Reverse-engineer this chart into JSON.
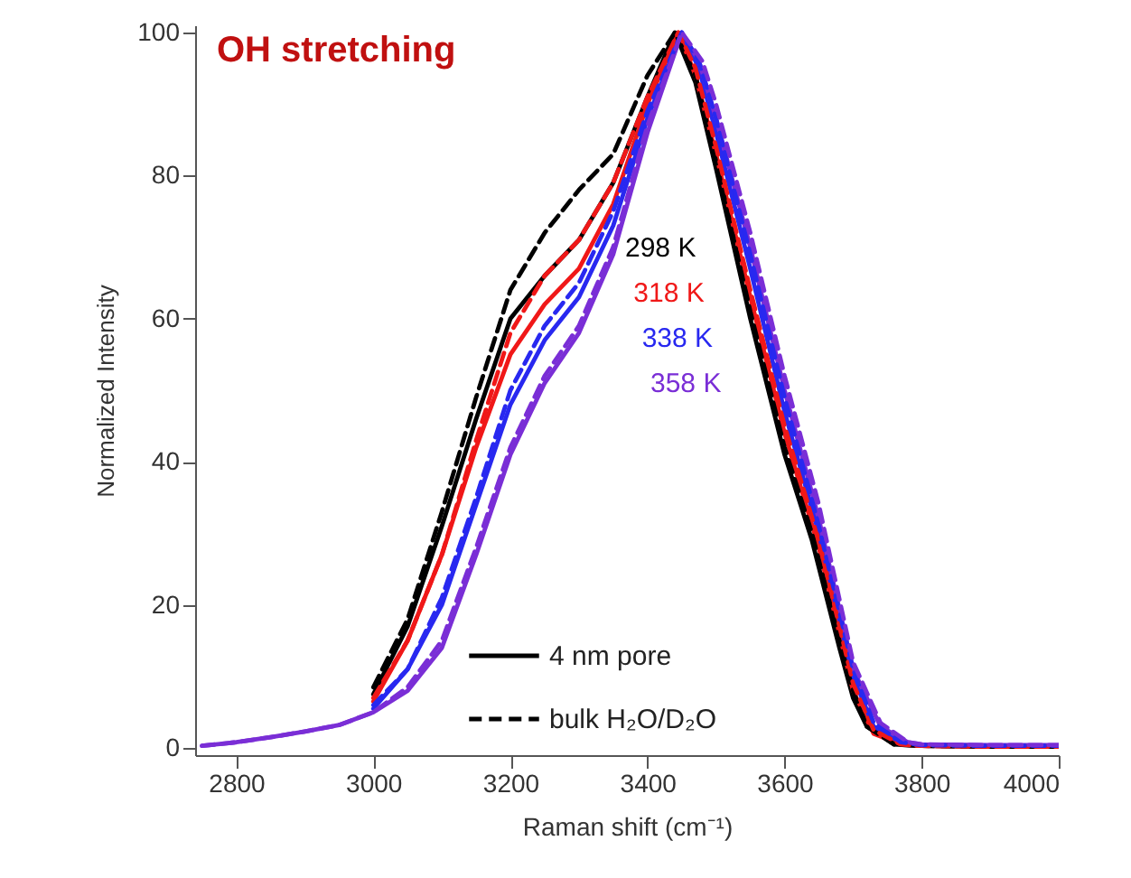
{
  "chart_data": {
    "type": "line",
    "title": "OH stretching",
    "xlabel": "Raman shift (cm⁻¹)",
    "ylabel": "Normalized Intensity",
    "annotations": [
      "4 nm pore",
      "bulk H₂O/D₂O"
    ],
    "xlim": [
      2740,
      4000
    ],
    "xticks": [
      2800,
      3000,
      3200,
      3400,
      3600,
      3800,
      4000
    ],
    "ylim": [
      -1,
      101
    ],
    "yticks": [
      0,
      20,
      40,
      60,
      80,
      100
    ],
    "legend": "right",
    "series": [
      {
        "name": "298 K",
        "color": "#000000",
        "line_style": "solid",
        "x": [
          3000,
          3050,
          3100,
          3150,
          3200,
          3250,
          3300,
          3350,
          3400,
          3440,
          3470,
          3500,
          3550,
          3600,
          3640,
          3680,
          3700,
          3720,
          3760,
          3800,
          3900,
          4000
        ],
        "values": [
          7.5,
          17,
          31,
          46,
          60,
          66,
          71,
          79,
          91,
          100,
          93,
          81,
          60,
          41,
          29,
          14,
          7,
          3,
          0.5,
          0.3,
          0.2,
          0.2
        ]
      },
      {
        "name": "318 K",
        "color": "#f01818",
        "line_style": "solid",
        "x": [
          3000,
          3050,
          3100,
          3150,
          3200,
          3250,
          3300,
          3350,
          3400,
          3445,
          3470,
          3500,
          3550,
          3600,
          3650,
          3680,
          3700,
          3730,
          3770,
          3800,
          3900,
          4000
        ],
        "values": [
          6.5,
          15,
          27,
          42,
          55,
          62,
          67,
          76,
          90,
          100,
          94,
          83,
          63,
          44,
          28,
          16,
          8,
          2,
          0.5,
          0.3,
          0.2,
          0.2
        ]
      },
      {
        "name": "338 K",
        "color": "#2828f0",
        "line_style": "solid",
        "x": [
          3000,
          3050,
          3100,
          3150,
          3200,
          3250,
          3300,
          3350,
          3400,
          3450,
          3475,
          3500,
          3550,
          3600,
          3650,
          3700,
          3730,
          3770,
          3800,
          3900,
          4000
        ],
        "values": [
          5.5,
          11,
          20,
          34,
          48,
          57,
          63,
          73,
          88,
          100,
          95,
          86,
          67,
          47,
          30,
          10,
          3,
          0.8,
          0.4,
          0.3,
          0.3
        ]
      },
      {
        "name": "358 K",
        "color": "#7a2ed6",
        "line_style": "solid",
        "x": [
          2750,
          2800,
          2850,
          2900,
          2950,
          3000,
          3050,
          3100,
          3150,
          3200,
          3250,
          3300,
          3350,
          3400,
          3450,
          3475,
          3500,
          3550,
          3600,
          3650,
          3700,
          3740,
          3780,
          3800,
          3900,
          4000
        ],
        "values": [
          0.3,
          0.8,
          1.5,
          2.3,
          3.2,
          5,
          8,
          14,
          27,
          41,
          51,
          58,
          69,
          86,
          100,
          96,
          88,
          70,
          50,
          32,
          11,
          3,
          0.8,
          0.5,
          0.4,
          0.4
        ]
      },
      {
        "color": "#000000",
        "line_style": "dashed",
        "x": [
          3000,
          3050,
          3100,
          3150,
          3200,
          3250,
          3300,
          3350,
          3400,
          3440,
          3470,
          3500,
          3550,
          3600,
          3640,
          3680,
          3700,
          3720,
          3760,
          3800,
          3900,
          4000
        ],
        "values": [
          8.5,
          18,
          33,
          49,
          64,
          72,
          78,
          83,
          94,
          100,
          94,
          82,
          61,
          42,
          30,
          15,
          8,
          3,
          0.5,
          0.3,
          0.2,
          0.2
        ]
      },
      {
        "color": "#f01818",
        "line_style": "dashed",
        "x": [
          3000,
          3050,
          3100,
          3150,
          3200,
          3250,
          3300,
          3350,
          3400,
          3445,
          3470,
          3500,
          3550,
          3600,
          3650,
          3680,
          3700,
          3730,
          3770,
          3800,
          3900,
          4000
        ],
        "values": [
          7,
          15,
          27,
          43,
          58,
          66,
          71,
          79,
          91,
          100,
          95,
          84,
          64,
          45,
          29,
          17,
          9,
          2.5,
          0.5,
          0.3,
          0.2,
          0.2
        ]
      },
      {
        "color": "#2828f0",
        "line_style": "dashed",
        "x": [
          3000,
          3050,
          3100,
          3150,
          3200,
          3250,
          3300,
          3350,
          3400,
          3450,
          3475,
          3500,
          3550,
          3600,
          3650,
          3700,
          3730,
          3770,
          3800,
          3900,
          4000
        ],
        "values": [
          6,
          11,
          21,
          35,
          50,
          59,
          65,
          75,
          89,
          100,
          96,
          88,
          69,
          49,
          31,
          11,
          3.5,
          0.8,
          0.4,
          0.3,
          0.3
        ]
      },
      {
        "color": "#7a2ed6",
        "line_style": "dashed",
        "x": [
          2750,
          2800,
          2850,
          2900,
          2950,
          3000,
          3050,
          3100,
          3150,
          3200,
          3250,
          3300,
          3350,
          3400,
          3450,
          3480,
          3500,
          3550,
          3600,
          3650,
          3700,
          3740,
          3780,
          3800,
          3900,
          4000
        ],
        "values": [
          0.3,
          0.8,
          1.5,
          2.3,
          3.2,
          5,
          8.5,
          15,
          28,
          42,
          52,
          59,
          70,
          87,
          100,
          96,
          90,
          72,
          52,
          34,
          12,
          3.5,
          0.8,
          0.5,
          0.4,
          0.4
        ]
      }
    ]
  }
}
